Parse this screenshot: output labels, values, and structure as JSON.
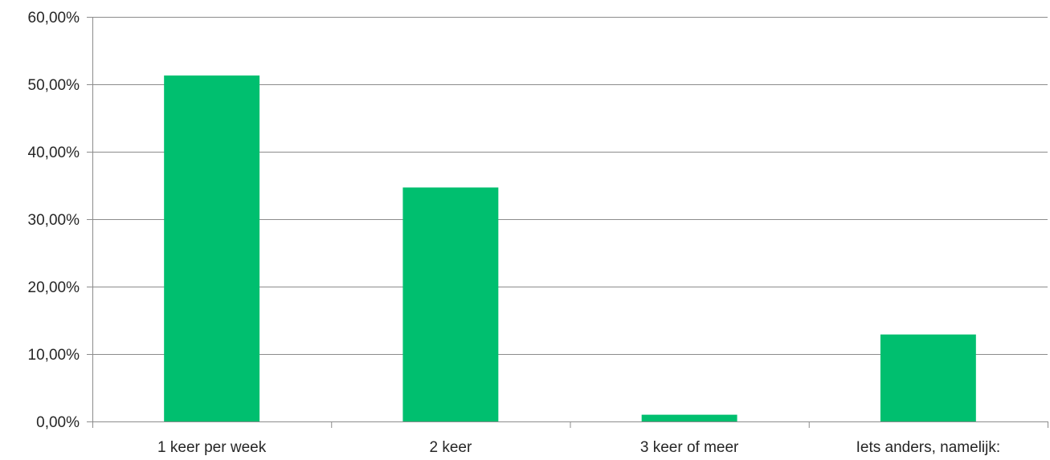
{
  "chart_data": {
    "type": "bar",
    "categories": [
      "1 keer per week",
      "2 keer",
      "3 keer of meer",
      "Iets anders, namelijk:"
    ],
    "values": [
      51.3,
      34.7,
      1.0,
      12.9
    ],
    "title": "",
    "xlabel": "",
    "ylabel": "",
    "ylim": [
      0,
      60
    ],
    "yticks": [
      0,
      10,
      20,
      30,
      40,
      50,
      60
    ],
    "ytick_labels": [
      "0,00%",
      "10,00%",
      "20,00%",
      "30,00%",
      "40,00%",
      "50,00%",
      "60,00%"
    ],
    "grid": true,
    "legend": "none",
    "bar_color": "#00bf6f",
    "grid_color": "#8c8c8c",
    "text_color": "#262626"
  }
}
